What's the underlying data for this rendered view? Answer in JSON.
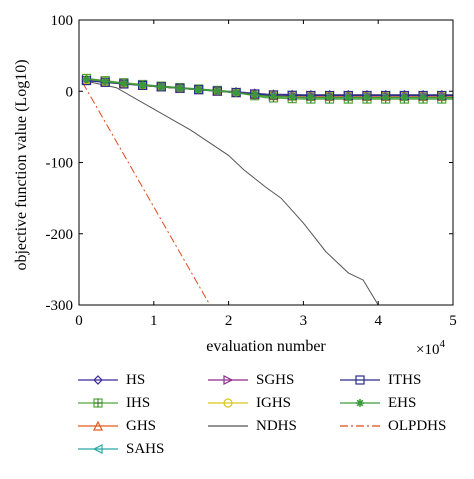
{
  "chart_data": {
    "type": "line",
    "xlabel": "evaluation number",
    "ylabel": "objective function value (Log10)",
    "x_multiplier_label": "×10",
    "x_multiplier_exp": "4",
    "xlim": [
      0,
      5
    ],
    "ylim": [
      -300,
      100
    ],
    "xticks": [
      "0",
      "1",
      "2",
      "3",
      "4",
      "5"
    ],
    "yticks": [
      "100",
      "0",
      "-100",
      "-200",
      "-300"
    ],
    "legend_position": "below",
    "series": [
      {
        "name": "HS",
        "color": "#3b2a9a",
        "marker": "diamond",
        "dash": "",
        "x": [
          0.1,
          0.5,
          1,
          1.5,
          2,
          2.5,
          3,
          3.5,
          4,
          4.5,
          5
        ],
        "y": [
          15,
          12,
          7,
          3,
          0,
          -4,
          -5,
          -5,
          -5,
          -5,
          -5
        ]
      },
      {
        "name": "IHS",
        "color": "#4fa83d",
        "marker": "plus-box",
        "dash": "",
        "x": [
          0.1,
          0.5,
          1,
          1.5,
          2,
          2.5,
          3,
          3.5,
          4,
          4.5,
          5
        ],
        "y": [
          18,
          13,
          8,
          4,
          0,
          -9,
          -11,
          -11,
          -11,
          -11,
          -11
        ]
      },
      {
        "name": "GHS",
        "color": "#e05a1c",
        "marker": "triangle-up",
        "dash": "",
        "x": [
          0.1,
          0.5,
          1,
          1.5,
          2,
          2.5,
          3,
          3.5,
          4,
          4.5,
          5
        ],
        "y": [
          17,
          12,
          7,
          3,
          -1,
          -6,
          -7,
          -7,
          -7,
          -7,
          -7
        ]
      },
      {
        "name": "SAHS",
        "color": "#2aa8a8",
        "marker": "triangle-left",
        "dash": "",
        "x": [
          0.1,
          0.5,
          1,
          1.5,
          2,
          2.5,
          3,
          3.5,
          4,
          4.5,
          5
        ],
        "y": [
          16,
          12,
          7,
          3,
          -1,
          -5,
          -6,
          -6,
          -6,
          -6,
          -6
        ]
      },
      {
        "name": "SGHS",
        "color": "#8e2c8e",
        "marker": "triangle-right",
        "dash": "",
        "x": [
          0.1,
          0.5,
          1,
          1.5,
          2,
          2.5,
          3,
          3.5,
          4,
          4.5,
          5
        ],
        "y": [
          16,
          12,
          7,
          3,
          -1,
          -5,
          -6,
          -6,
          -6,
          -6,
          -6
        ]
      },
      {
        "name": "IGHS",
        "color": "#d6c81a",
        "marker": "circle",
        "dash": "",
        "x": [
          0.1,
          0.5,
          1,
          1.5,
          2,
          2.5,
          3,
          3.5,
          4,
          4.5,
          5
        ],
        "y": [
          16,
          12,
          7,
          3,
          -1,
          -5,
          -6,
          -6,
          -6,
          -6,
          -6
        ]
      },
      {
        "name": "NDHS",
        "color": "#555555",
        "marker": "none",
        "dash": "",
        "x": [
          0.1,
          0.5,
          1,
          1.5,
          2,
          2.2,
          2.5,
          2.7,
          3,
          3.3,
          3.6,
          3.8,
          4,
          5
        ],
        "y": [
          14,
          5,
          -25,
          -55,
          -90,
          -110,
          -135,
          -150,
          -185,
          -225,
          -255,
          -265,
          -300,
          -300
        ]
      },
      {
        "name": "ITHS",
        "color": "#2b2b8a",
        "marker": "square",
        "dash": "",
        "x": [
          0.1,
          0.5,
          1,
          1.5,
          2,
          2.5,
          3,
          3.5,
          4,
          4.5,
          5
        ],
        "y": [
          15,
          11,
          7,
          3,
          -1,
          -5,
          -6,
          -6,
          -6,
          -6,
          -6
        ]
      },
      {
        "name": "EHS",
        "color": "#3a9a3a",
        "marker": "star",
        "dash": "",
        "x": [
          0.1,
          0.5,
          1,
          1.5,
          2,
          2.5,
          3,
          3.5,
          4,
          4.5,
          5
        ],
        "y": [
          17,
          12,
          7,
          3,
          -1,
          -7,
          -9,
          -9,
          -9,
          -9,
          -9
        ]
      },
      {
        "name": "OLPDHS",
        "color": "#e04a1a",
        "marker": "none",
        "dash": "8,3,2,3",
        "x": [
          0.05,
          1.75,
          5
        ],
        "y": [
          12,
          -300,
          -300
        ]
      }
    ]
  }
}
